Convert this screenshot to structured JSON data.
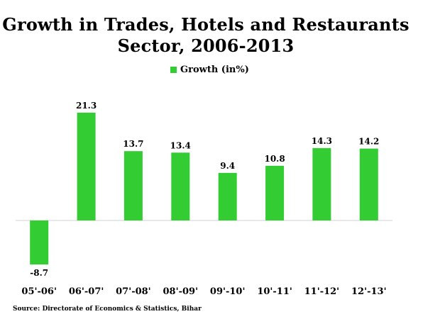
{
  "chart_data": {
    "type": "bar",
    "title_lines": [
      "Growth in Trades, Hotels and Restaurants",
      "Sector, 2006-2013"
    ],
    "series": [
      {
        "name": "Growth (in%)",
        "color": "#33cc33",
        "values": [
          -8.7,
          21.3,
          13.7,
          13.4,
          9.4,
          10.8,
          14.3,
          14.2
        ]
      }
    ],
    "categories": [
      "05'-06'",
      "06'-07'",
      "07'-08'",
      "08'-09'",
      "09'-10'",
      "10'-11'",
      "11'-12'",
      "12'-13'"
    ],
    "data_labels": [
      "-8.7",
      "21.3",
      "13.7",
      "13.4",
      "9.4",
      "10.8",
      "14.3",
      "14.2"
    ],
    "xlabel": "",
    "ylabel": "",
    "ylim": [
      -10,
      25
    ],
    "grid": false,
    "legend_position": "top",
    "zero_line_color": "#d0d0d0"
  },
  "source_text": "Source: Directorate of Economics & Statistics, Bihar"
}
